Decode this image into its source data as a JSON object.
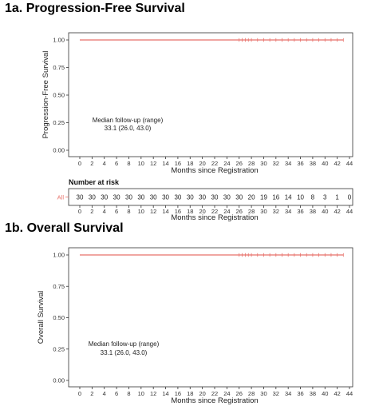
{
  "panels": {
    "a": {
      "title": "1a. Progression-Free Survival"
    },
    "b": {
      "title": "1b. Overall Survival"
    }
  },
  "colors": {
    "curve": "#e8726b",
    "axis": "#333333",
    "risk_strata": "#e8726b"
  },
  "chart_data": [
    {
      "type": "line",
      "title": "1a. Progression-Free Survival",
      "xlabel": "Months since Registration",
      "ylabel": "Progression-Free Survival",
      "xlim": [
        0,
        44
      ],
      "ylim": [
        0,
        1
      ],
      "x_ticks": [
        0,
        2,
        4,
        6,
        8,
        10,
        12,
        14,
        16,
        18,
        20,
        22,
        24,
        26,
        28,
        30,
        32,
        34,
        36,
        38,
        40,
        42,
        44
      ],
      "y_ticks": [
        "0.00",
        "0.25",
        "0.50",
        "0.75",
        "1.00"
      ],
      "grid": false,
      "series": [
        {
          "x": [
            0,
            43
          ],
          "y": [
            1.0,
            1.0
          ]
        }
      ],
      "censor_times": [
        26,
        26.5,
        27,
        27.5,
        28,
        29,
        30,
        31,
        32,
        33,
        34,
        35,
        36,
        37,
        38,
        39,
        40,
        41,
        42,
        43
      ],
      "annotation": {
        "line1": "Median follow-up (range)",
        "line2": "33.1 (26.0, 43.0)"
      },
      "risk_table": {
        "title": "Number at risk",
        "strata": "All",
        "xlabel": "Months since Registration",
        "counts": [
          30,
          30,
          30,
          30,
          30,
          30,
          30,
          30,
          30,
          30,
          30,
          30,
          30,
          30,
          20,
          19,
          16,
          14,
          10,
          8,
          3,
          1,
          0
        ]
      }
    },
    {
      "type": "line",
      "title": "1b. Overall Survival",
      "xlabel": "Months since Registration",
      "ylabel": "Overall Survival",
      "xlim": [
        0,
        44
      ],
      "ylim": [
        0,
        1
      ],
      "x_ticks": [
        0,
        2,
        4,
        6,
        8,
        10,
        12,
        14,
        16,
        18,
        20,
        22,
        24,
        26,
        28,
        30,
        32,
        34,
        36,
        38,
        40,
        42,
        44
      ],
      "y_ticks": [
        "0.00",
        "0.25",
        "0.50",
        "0.75",
        "1.00"
      ],
      "grid": false,
      "series": [
        {
          "x": [
            0,
            43
          ],
          "y": [
            1.0,
            1.0
          ]
        }
      ],
      "censor_times": [
        26,
        26.5,
        27,
        27.5,
        28,
        29,
        30,
        31,
        32,
        33,
        34,
        35,
        36,
        37,
        38,
        39,
        40,
        41,
        42,
        43
      ],
      "annotation": {
        "line1": "Median follow-up (range)",
        "line2": "33.1 (26.0, 43.0)"
      }
    }
  ]
}
